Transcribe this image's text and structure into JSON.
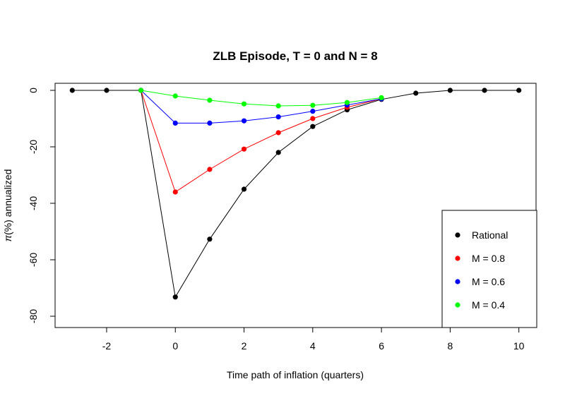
{
  "chart_data": {
    "type": "line",
    "title": "ZLB Episode, T = 0 and N = 8",
    "xlabel": "Time path of inflation (quarters)",
    "ylabel_symbol": "π",
    "ylabel_rest": "(%) annualized",
    "x": [
      -3,
      -2,
      -1,
      0,
      1,
      2,
      3,
      4,
      5,
      6,
      7,
      8,
      9,
      10
    ],
    "xlim": [
      -3.5,
      10.5
    ],
    "ylim": [
      -84,
      2.5
    ],
    "xticks": [
      -2,
      0,
      2,
      4,
      6,
      8,
      10
    ],
    "yticks": [
      0,
      -20,
      -40,
      -60,
      -80
    ],
    "legend_position": "bottom-right",
    "series": [
      {
        "name": "Rational",
        "color": "#000000",
        "values": [
          0,
          0,
          0,
          -73.2,
          -52.7,
          -35.0,
          -22.0,
          -12.8,
          -6.9,
          -3.2,
          -1.0,
          0,
          0,
          0
        ]
      },
      {
        "name": "M = 0.8",
        "color": "#ff0000",
        "values": [
          null,
          null,
          0,
          -36.0,
          -28.0,
          -20.8,
          -15.0,
          -10.0,
          -6.0,
          -3.0,
          null,
          null,
          null,
          null
        ]
      },
      {
        "name": "M = 0.6",
        "color": "#0000ff",
        "values": [
          null,
          null,
          0,
          -11.6,
          -11.6,
          -10.8,
          -9.4,
          -7.4,
          -5.2,
          -3.0,
          null,
          null,
          null,
          null
        ]
      },
      {
        "name": "M = 0.4",
        "color": "#00ff00",
        "values": [
          null,
          null,
          0,
          -2.0,
          -3.5,
          -4.8,
          -5.5,
          -5.3,
          -4.3,
          -2.6,
          null,
          null,
          null,
          null
        ]
      }
    ]
  }
}
